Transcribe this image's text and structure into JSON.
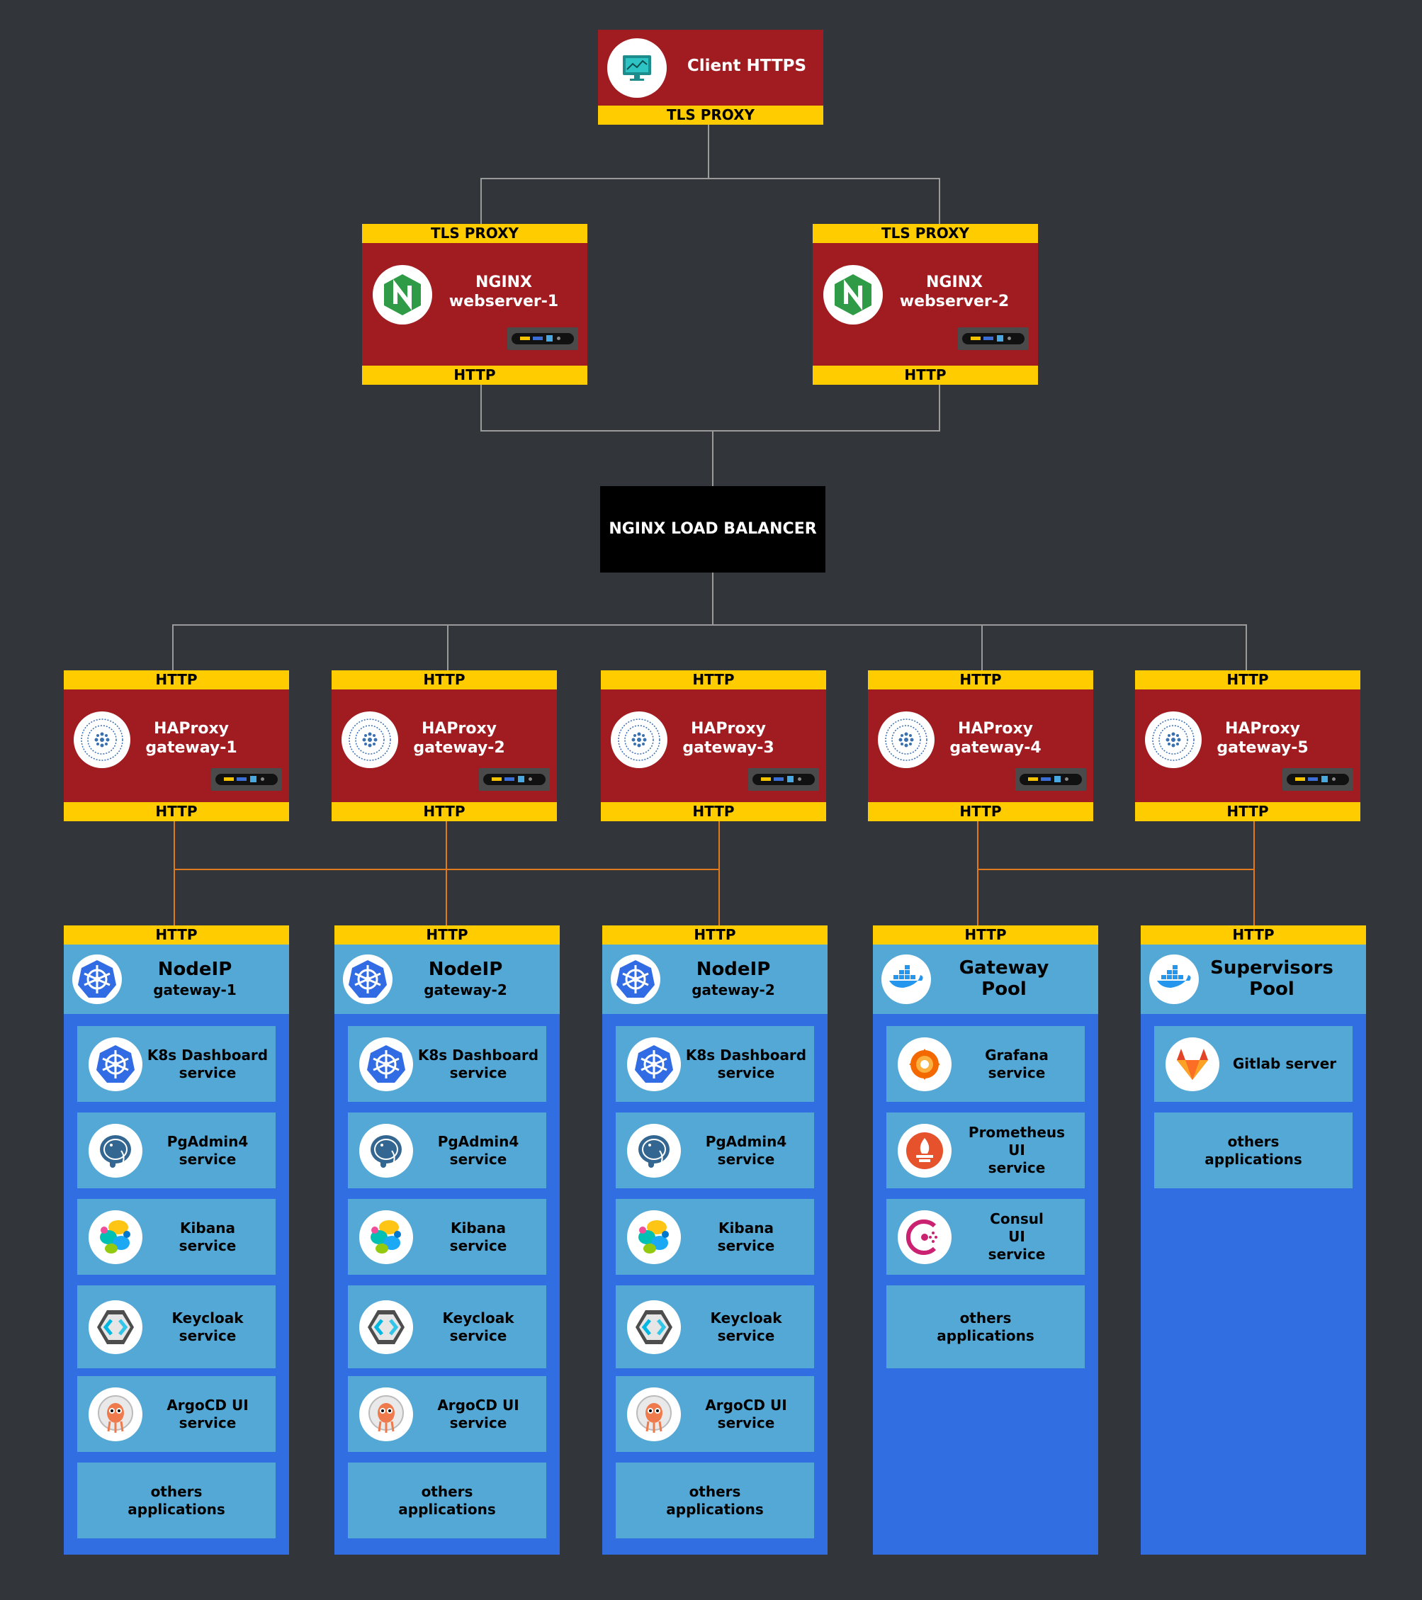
{
  "client": {
    "title": "Client HTTPS",
    "band": "TLS PROXY"
  },
  "webservers": [
    {
      "top_band": "TLS PROXY",
      "name": "NGINX",
      "sub": "webserver-1",
      "bottom_band": "HTTP"
    },
    {
      "top_band": "TLS PROXY",
      "name": "NGINX",
      "sub": "webserver-2",
      "bottom_band": "HTTP"
    }
  ],
  "load_balancer": {
    "title": "NGINX LOAD BALANCER"
  },
  "gateways": [
    {
      "top_band": "HTTP",
      "name": "HAProxy",
      "sub": "gateway-1",
      "bottom_band": "HTTP"
    },
    {
      "top_band": "HTTP",
      "name": "HAProxy",
      "sub": "gateway-2",
      "bottom_band": "HTTP"
    },
    {
      "top_band": "HTTP",
      "name": "HAProxy",
      "sub": "gateway-3",
      "bottom_band": "HTTP"
    },
    {
      "top_band": "HTTP",
      "name": "HAProxy",
      "sub": "gateway-4",
      "bottom_band": "HTTP"
    },
    {
      "top_band": "HTTP",
      "name": "HAProxy",
      "sub": "gateway-5",
      "bottom_band": "HTTP"
    }
  ],
  "pools": [
    {
      "band": "HTTP",
      "title": "NodeIP",
      "sub": "gateway-1",
      "icon": "kubernetes-icon",
      "items": [
        {
          "l1": "K8s Dashboard",
          "l2": "service",
          "icon": "kubernetes-icon"
        },
        {
          "l1": "PgAdmin4",
          "l2": "service",
          "icon": "postgresql-icon"
        },
        {
          "l1": "Kibana",
          "l2": "service",
          "icon": "elastic-icon"
        },
        {
          "l1": "Keycloak",
          "l2": "service",
          "icon": "keycloak-icon"
        },
        {
          "l1": "ArgoCD UI",
          "l2": "service",
          "icon": "argocd-icon"
        },
        {
          "l1": "others",
          "l2": "applications",
          "icon": ""
        }
      ]
    },
    {
      "band": "HTTP",
      "title": "NodeIP",
      "sub": "gateway-2",
      "icon": "kubernetes-icon",
      "items": [
        {
          "l1": "K8s Dashboard",
          "l2": "service",
          "icon": "kubernetes-icon"
        },
        {
          "l1": "PgAdmin4",
          "l2": "service",
          "icon": "postgresql-icon"
        },
        {
          "l1": "Kibana",
          "l2": "service",
          "icon": "elastic-icon"
        },
        {
          "l1": "Keycloak",
          "l2": "service",
          "icon": "keycloak-icon"
        },
        {
          "l1": "ArgoCD UI",
          "l2": "service",
          "icon": "argocd-icon"
        },
        {
          "l1": "others",
          "l2": "applications",
          "icon": ""
        }
      ]
    },
    {
      "band": "HTTP",
      "title": "NodeIP",
      "sub": "gateway-2",
      "icon": "kubernetes-icon",
      "items": [
        {
          "l1": "K8s Dashboard",
          "l2": "service",
          "icon": "kubernetes-icon"
        },
        {
          "l1": "PgAdmin4",
          "l2": "service",
          "icon": "postgresql-icon"
        },
        {
          "l1": "Kibana",
          "l2": "service",
          "icon": "elastic-icon"
        },
        {
          "l1": "Keycloak",
          "l2": "service",
          "icon": "keycloak-icon"
        },
        {
          "l1": "ArgoCD UI",
          "l2": "service",
          "icon": "argocd-icon"
        },
        {
          "l1": "others",
          "l2": "applications",
          "icon": ""
        }
      ]
    },
    {
      "band": "HTTP",
      "title": "Gateway",
      "sub": "Pool",
      "icon": "docker-icon",
      "items": [
        {
          "l1": "Grafana",
          "l2": "service",
          "icon": "grafana-icon"
        },
        {
          "l1": "Prometheus",
          "l2": "UI",
          "l3": "service",
          "icon": "prometheus-icon"
        },
        {
          "l1": "Consul",
          "l2": "UI",
          "l3": "service",
          "icon": "consul-icon"
        },
        {
          "l1": "others",
          "l2": "applications",
          "icon": ""
        }
      ]
    },
    {
      "band": "HTTP",
      "title": "Supervisors",
      "sub": "Pool",
      "icon": "docker-icon",
      "items": [
        {
          "l1": "Gitlab server",
          "l2": "",
          "icon": "gitlab-icon"
        },
        {
          "l1": "others",
          "l2": "applications",
          "icon": ""
        }
      ]
    }
  ]
}
